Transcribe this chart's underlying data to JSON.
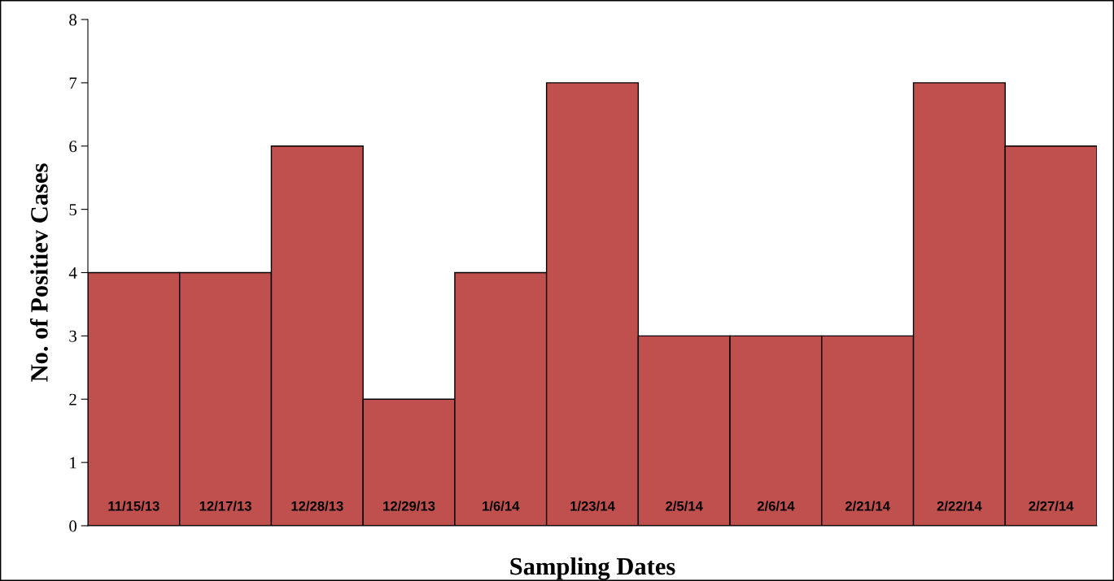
{
  "chart_data": {
    "type": "bar",
    "xlabel": "Sampling Dates",
    "ylabel": "No. of Positiev Cases",
    "categories": [
      "11/15/13",
      "12/17/13",
      "12/28/13",
      "12/29/13",
      "1/6/14",
      "1/23/14",
      "2/5/14",
      "2/6/14",
      "2/21/14",
      "2/22/14",
      "2/27/14"
    ],
    "values": [
      4,
      4,
      6,
      2,
      4,
      7,
      3,
      3,
      3,
      7,
      6
    ],
    "color": "#c0504d",
    "ylim": [
      0,
      8
    ],
    "yticks": [
      0,
      1,
      2,
      3,
      4,
      5,
      6,
      7,
      8
    ],
    "grid": false,
    "legend": false
  }
}
